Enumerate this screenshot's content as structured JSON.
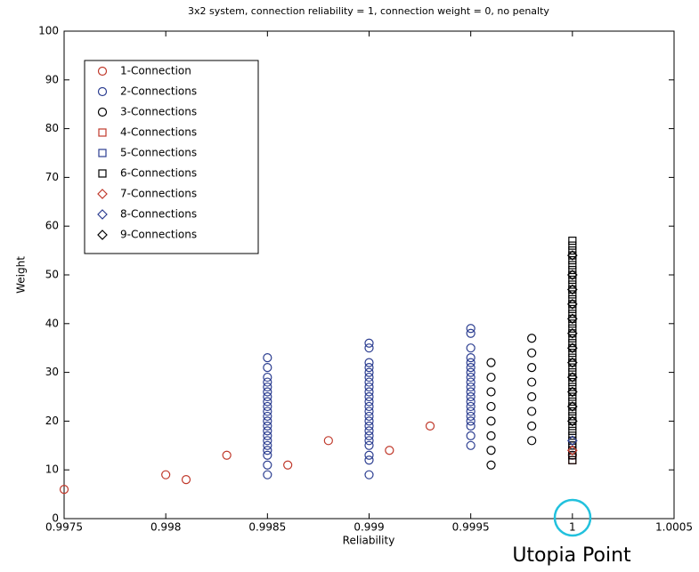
{
  "chart_data": {
    "type": "scatter",
    "title": "3x2 system, connection reliability = 1, connection weight = 0, no penalty",
    "x_label": "Reliability",
    "y_label": "Weight",
    "annotation": "Utopia Point",
    "xlim": [
      0.9975,
      1.0005
    ],
    "xticks": [
      0.9975,
      0.998,
      0.9985,
      0.999,
      0.9995,
      1,
      1.0005
    ],
    "ylim": [
      0,
      100
    ],
    "yticks": [
      0,
      10,
      20,
      30,
      40,
      50,
      60,
      70,
      80,
      90,
      100
    ],
    "legend": "upper left",
    "series": [
      {
        "name": "1-Connection",
        "color": "#c0392b",
        "marker": "circle",
        "x": [
          0.9975,
          0.998,
          0.9981,
          0.9983,
          0.9986,
          0.9988,
          0.9991,
          0.9993,
          1
        ],
        "y": [
          6,
          9,
          8,
          13,
          11,
          16,
          14,
          19,
          13
        ]
      },
      {
        "name": "2-Connections",
        "color": "#2c3e91",
        "marker": "circle",
        "x": [
          0.9985,
          0.9985,
          0.9985,
          0.9985,
          0.9985,
          0.9985,
          0.9985,
          0.9985,
          0.9985,
          0.9985,
          0.9985,
          0.9985,
          0.9985,
          0.9985,
          0.9985,
          0.9985,
          0.9985,
          0.9985,
          0.9985,
          0.9985,
          0.9985,
          0.999,
          0.999,
          0.999,
          0.999,
          0.999,
          0.999,
          0.999,
          0.999,
          0.999,
          0.999,
          0.999,
          0.999,
          0.999,
          0.999,
          0.999,
          0.999,
          0.999,
          0.999,
          0.999,
          0.999,
          0.999,
          0.999,
          0.999,
          0.9995,
          0.9995,
          0.9995,
          0.9995,
          0.9995,
          0.9995,
          0.9995,
          0.9995,
          0.9995,
          0.9995,
          0.9995,
          0.9995,
          0.9995,
          0.9995,
          0.9995,
          0.9995,
          0.9995,
          0.9995,
          0.9995,
          0.9995
        ],
        "y": [
          9,
          11,
          13,
          14,
          15,
          16,
          17,
          18,
          19,
          20,
          21,
          22,
          23,
          24,
          25,
          26,
          27,
          28,
          29,
          31,
          33,
          9,
          12,
          13,
          15,
          16,
          17,
          18,
          19,
          20,
          21,
          22,
          23,
          24,
          25,
          26,
          27,
          28,
          29,
          30,
          31,
          32,
          35,
          36,
          15,
          17,
          19,
          20,
          21,
          22,
          23,
          24,
          25,
          26,
          27,
          28,
          29,
          30,
          31,
          32,
          33,
          35,
          38,
          39
        ]
      },
      {
        "name": "3-Connections",
        "color": "#000000",
        "marker": "circle",
        "x": [
          0.9996,
          0.9996,
          0.9996,
          0.9996,
          0.9996,
          0.9996,
          0.9996,
          0.9996,
          0.9998,
          0.9998,
          0.9998,
          0.9998,
          0.9998,
          0.9998,
          0.9998,
          0.9998
        ],
        "y": [
          11,
          14,
          17,
          20,
          23,
          26,
          29,
          32,
          16,
          19,
          22,
          25,
          28,
          31,
          34,
          37
        ]
      },
      {
        "name": "4-Connections",
        "color": "#c0392b",
        "marker": "square",
        "x": [
          1,
          1,
          1
        ],
        "y": [
          12,
          13,
          14
        ]
      },
      {
        "name": "5-Connections",
        "color": "#2c3e91",
        "marker": "square",
        "x": [
          1,
          1
        ],
        "y": [
          13,
          15
        ]
      },
      {
        "name": "6-Connections",
        "color": "#000000",
        "marker": "square",
        "x": [
          1,
          1,
          1,
          1,
          1,
          1,
          1,
          1,
          1,
          1,
          1,
          1,
          1,
          1,
          1,
          1,
          1,
          1,
          1,
          1,
          1,
          1,
          1,
          1,
          1,
          1,
          1,
          1,
          1,
          1,
          1,
          1,
          1,
          1,
          1,
          1,
          1,
          1,
          1,
          1,
          1,
          1,
          1,
          1,
          1,
          1
        ],
        "y": [
          12,
          13,
          14,
          15,
          16,
          17,
          18,
          19,
          20,
          21,
          22,
          23,
          24,
          25,
          26,
          27,
          28,
          29,
          30,
          31,
          32,
          33,
          34,
          35,
          36,
          37,
          38,
          39,
          40,
          41,
          42,
          43,
          44,
          45,
          46,
          47,
          48,
          49,
          50,
          51,
          52,
          53,
          54,
          55,
          56,
          57
        ]
      },
      {
        "name": "7-Connections",
        "color": "#c0392b",
        "marker": "diamond",
        "x": [
          1
        ],
        "y": [
          14
        ]
      },
      {
        "name": "8-Connections",
        "color": "#2c3e91",
        "marker": "diamond",
        "x": [
          1
        ],
        "y": [
          16
        ]
      },
      {
        "name": "9-Connections",
        "color": "#000000",
        "marker": "diamond",
        "x": [
          1,
          1,
          1,
          1,
          1,
          1,
          1,
          1,
          1,
          1,
          1,
          1
        ],
        "y": [
          20,
          23,
          26,
          29,
          32,
          35,
          38,
          41,
          44,
          47,
          50,
          54
        ]
      }
    ]
  }
}
